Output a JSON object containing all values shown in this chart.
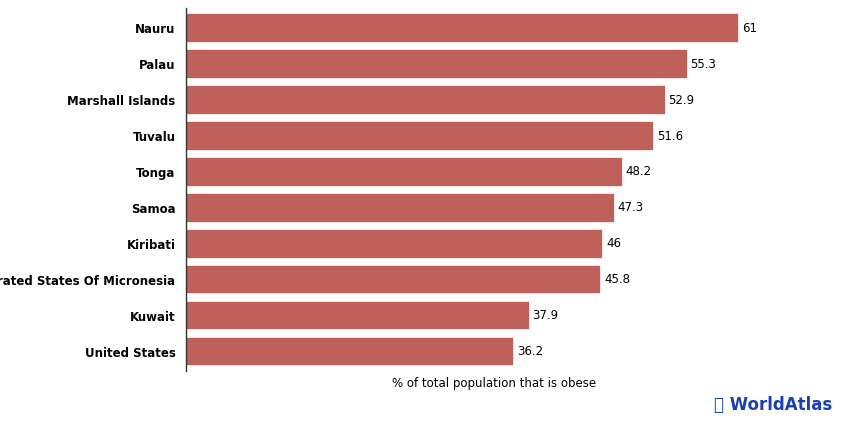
{
  "categories": [
    "United States",
    "Kuwait",
    "Federated States Of Micronesia",
    "Kiribati",
    "Samoa",
    "Tonga",
    "Tuvalu",
    "Marshall Islands",
    "Palau",
    "Nauru"
  ],
  "values": [
    36.2,
    37.9,
    45.8,
    46,
    47.3,
    48.2,
    51.6,
    52.9,
    55.3,
    61
  ],
  "bar_color": "#c0605a",
  "xlabel": "% of total population that is obese",
  "xlim": [
    0,
    68
  ],
  "background_color": "#ffffff",
  "value_labels": [
    "36.2",
    "37.9",
    "45.8",
    "46",
    "47.3",
    "48.2",
    "51.6",
    "52.9",
    "55.3",
    "61"
  ],
  "watermark_text": "⌘ WorldAtlas",
  "watermark_color": "#1a3faf",
  "label_fontsize": 8.5,
  "value_fontsize": 8.5,
  "xlabel_fontsize": 8.5,
  "bar_height": 0.82
}
